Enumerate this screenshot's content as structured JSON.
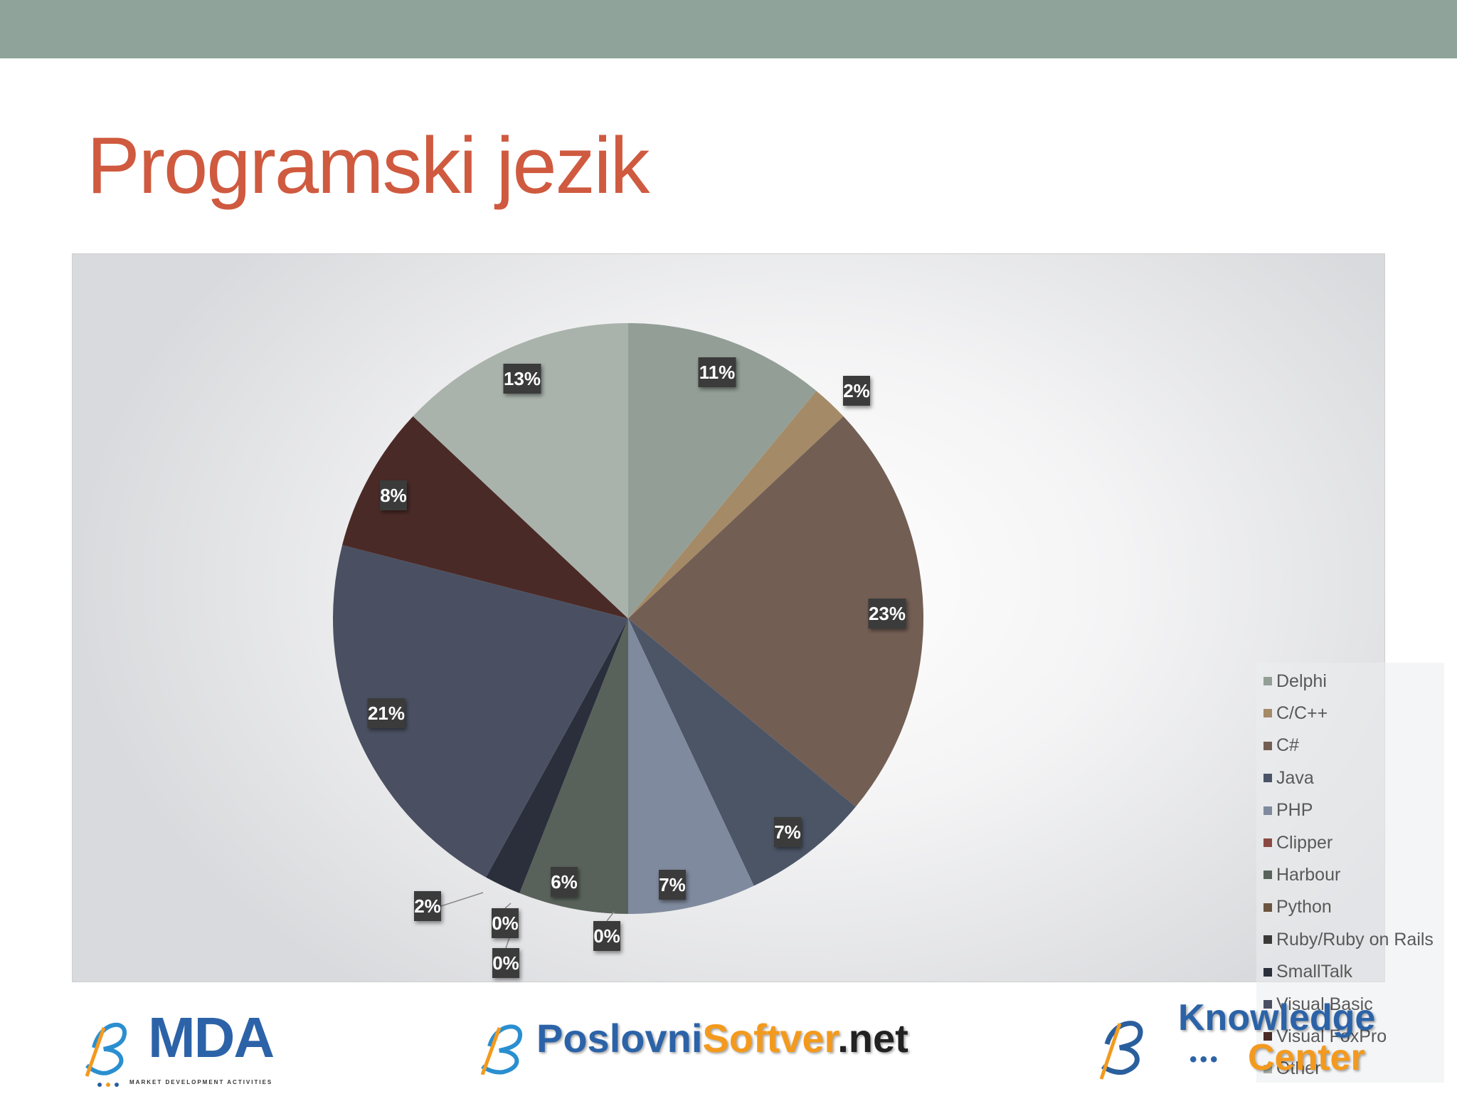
{
  "slide": {
    "title": "Programski jezik"
  },
  "chart_data": {
    "type": "pie",
    "title": "",
    "legend_position": "right",
    "slices": [
      {
        "name": "Delphi",
        "value": 11,
        "label": "11%",
        "color": "#939f96"
      },
      {
        "name": "C/C++",
        "value": 2,
        "label": "2%",
        "color": "#a48a67"
      },
      {
        "name": "C#",
        "value": 23,
        "label": "23%",
        "color": "#735e54"
      },
      {
        "name": "Java",
        "value": 7,
        "label": "7%",
        "color": "#4b5566"
      },
      {
        "name": "PHP",
        "value": 7,
        "label": "7%",
        "color": "#7f8a9e"
      },
      {
        "name": "Clipper",
        "value": 0,
        "label": "0%",
        "color": "#8a4a44"
      },
      {
        "name": "Harbour",
        "value": 6,
        "label": "6%",
        "color": "#58625a"
      },
      {
        "name": "Python",
        "value": 0,
        "label": "0%",
        "color": "#6b5440"
      },
      {
        "name": "Ruby/Ruby on Rails",
        "value": 0,
        "label": "0%",
        "color": "#3b3a38"
      },
      {
        "name": "SmallTalk",
        "value": 2,
        "label": "2%",
        "color": "#2a2f3b"
      },
      {
        "name": "Visual Basic",
        "value": 21,
        "label": "21%",
        "color": "#4a5062"
      },
      {
        "name": "Visual FoxPro",
        "value": 8,
        "label": "8%",
        "color": "#4a2a27"
      },
      {
        "name": "Other",
        "value": 13,
        "label": "13%",
        "color": "#a9b3ab"
      }
    ]
  },
  "footer": {
    "logo_left": "MDA",
    "logo_left_tagline": "MARKET DEVELOPMENT ACTIVITIES",
    "logo_center_a": "Poslovni",
    "logo_center_b": "Softver",
    "logo_center_c": ".net",
    "logo_right_a": "Knowledge",
    "logo_right_b": "Center"
  }
}
